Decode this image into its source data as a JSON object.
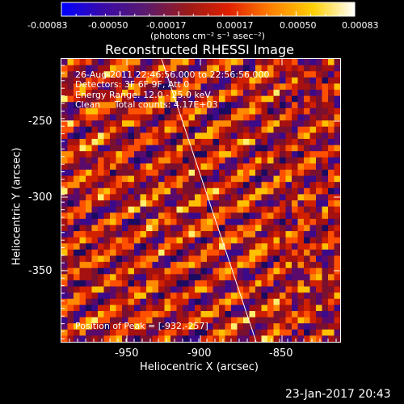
{
  "colorbar": {
    "ticks": [
      "-0.00083",
      "-0.00050",
      "-0.00017",
      "0.00017",
      "0.00050",
      "0.00083"
    ],
    "unit_label": "(photons cm⁻² s⁻¹ asec⁻²)"
  },
  "title": "Reconstructed RHESSI Image",
  "info": {
    "time_range": "26-Aug-2011 22:46:56.000 to 22:56:56.000",
    "detectors": "Detectors: 3F 6F 9F, Att 0",
    "energy": "Energy Range: 12.0 - 25.0 keV",
    "clean": "Clean     Total counts: 4.17E+03",
    "peak": "Position of Peak = [-932,-257]"
  },
  "axes": {
    "xlabel": "Heliocentric X (arcsec)",
    "ylabel": "Heliocentric Y (arcsec)",
    "x_ticks": [
      "-950",
      "-900",
      "-850"
    ],
    "y_ticks": [
      "-250",
      "-300",
      "-350"
    ]
  },
  "footer": {
    "timestamp": "23-Jan-2017 20:43"
  },
  "colors": {
    "background": "#000000",
    "colorbar_stops": [
      "#0000ff",
      "#3a0aa8",
      "#5a1a6e",
      "#9a1a1a",
      "#e02000",
      "#ff8000",
      "#ffd000",
      "#ffffff"
    ]
  }
}
